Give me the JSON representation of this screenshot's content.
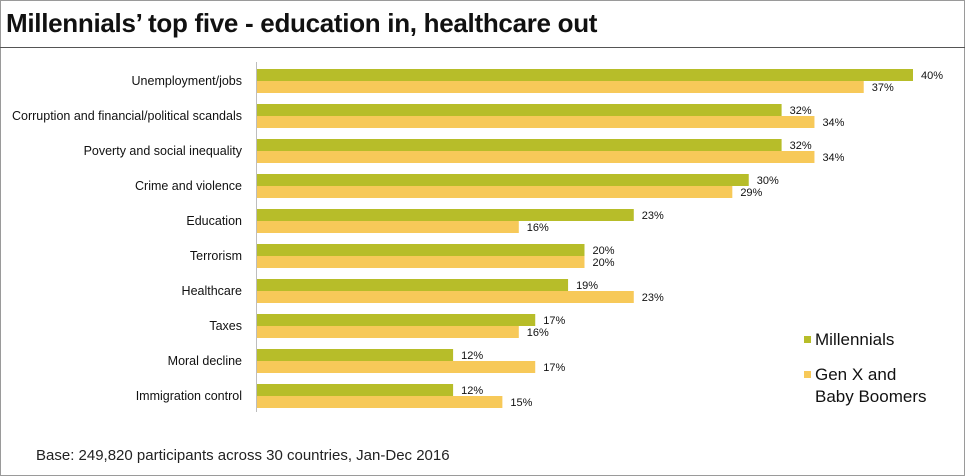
{
  "chart_data": {
    "type": "bar",
    "orientation": "horizontal",
    "title": "Millennials’ top five - education in, healthcare out",
    "categories": [
      "Unemployment/jobs",
      "Corruption and financial/political scandals",
      "Poverty and social inequality",
      "Crime and violence",
      "Education",
      "Terrorism",
      "Healthcare",
      "Taxes",
      "Moral decline",
      "Immigration control"
    ],
    "series": [
      {
        "name": "Millennials",
        "color": "#b7bd29",
        "values": [
          40,
          32,
          32,
          30,
          23,
          20,
          19,
          17,
          12,
          12
        ],
        "labels": [
          "40%",
          "32%",
          "32%",
          "30%",
          "23%",
          "20%",
          "19%",
          "17%",
          "12%",
          "12%"
        ]
      },
      {
        "name": "Gen X and Baby Boomers",
        "color": "#f7c959",
        "values": [
          37,
          34,
          34,
          29,
          16,
          20,
          23,
          16,
          17,
          15
        ],
        "labels": [
          "37%",
          "34%",
          "34%",
          "29%",
          "16%",
          "20%",
          "23%",
          "16%",
          "17%",
          "15%"
        ]
      }
    ],
    "xlim": [
      0,
      40
    ],
    "grid": false,
    "legend_position": "bottom-right"
  },
  "legend": {
    "millennials": "Millennials",
    "genx_line1": "Gen X and",
    "genx_line2": "Baby Boomers"
  },
  "footnote": "Base: 249,820 participants across 30 countries, Jan-Dec 2016"
}
